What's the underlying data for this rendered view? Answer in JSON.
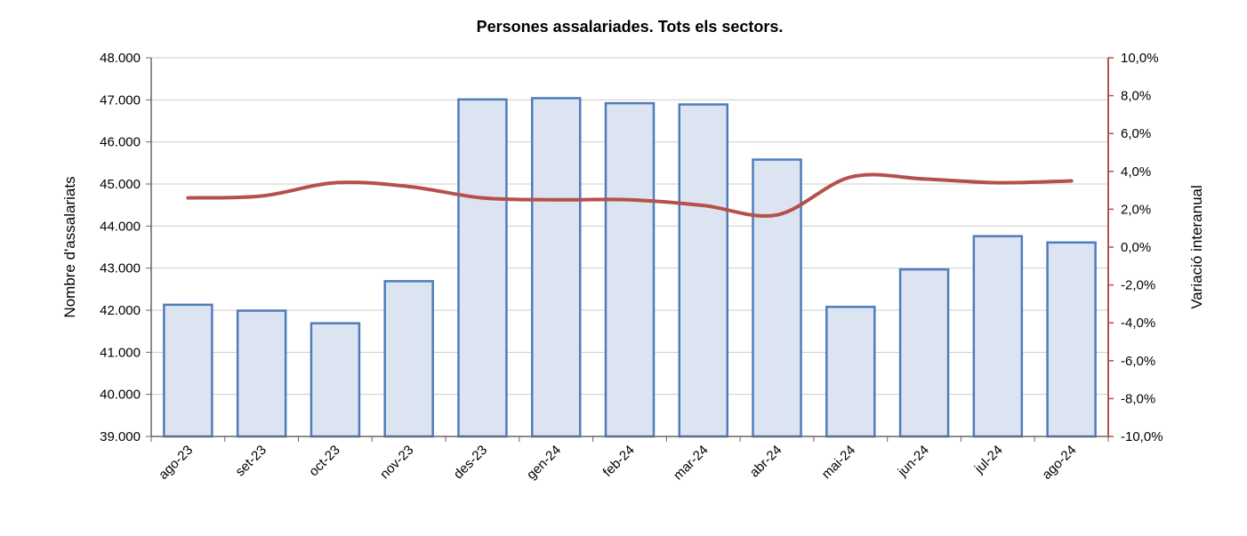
{
  "chart_data": {
    "type": "bar",
    "title": "Persones assalariades. Tots els sectors.",
    "categories": [
      "ago-23",
      "set-23",
      "oct-23",
      "nov-23",
      "des-23",
      "gen-24",
      "feb-24",
      "mar-24",
      "abr-24",
      "mai-24",
      "jun-24",
      "jul-24",
      "ago-24"
    ],
    "series": [
      {
        "type": "bar",
        "axis": "left",
        "values": [
          42130,
          41990,
          41690,
          42690,
          47010,
          47040,
          46920,
          46890,
          45580,
          42080,
          42970,
          43760,
          43610
        ]
      },
      {
        "type": "line",
        "axis": "right",
        "values": [
          2.6,
          2.7,
          3.4,
          3.2,
          2.6,
          2.5,
          2.5,
          2.2,
          1.7,
          3.7,
          3.6,
          3.4,
          3.5
        ]
      }
    ],
    "ylabel": "Nombre d'assalariats",
    "y2label": "Variació interanual",
    "ylim": [
      39000,
      48000
    ],
    "y2lim": [
      -10,
      10
    ],
    "yticks": [
      "39.000",
      "40.000",
      "41.000",
      "42.000",
      "43.000",
      "44.000",
      "45.000",
      "46.000",
      "47.000",
      "48.000"
    ],
    "y2ticks": [
      "-10,0%",
      "-8,0%",
      "-6,0%",
      "-4,0%",
      "-2,0%",
      "0,0%",
      "2,0%",
      "4,0%",
      "6,0%",
      "8,0%",
      "10,0%"
    ],
    "grid": true,
    "colors": {
      "bar_fill": "#dde4f1",
      "bar_stroke": "#4f7cbc",
      "line": "#b5504b",
      "right_axis": "#b5504b",
      "grid": "#cccccc"
    }
  }
}
